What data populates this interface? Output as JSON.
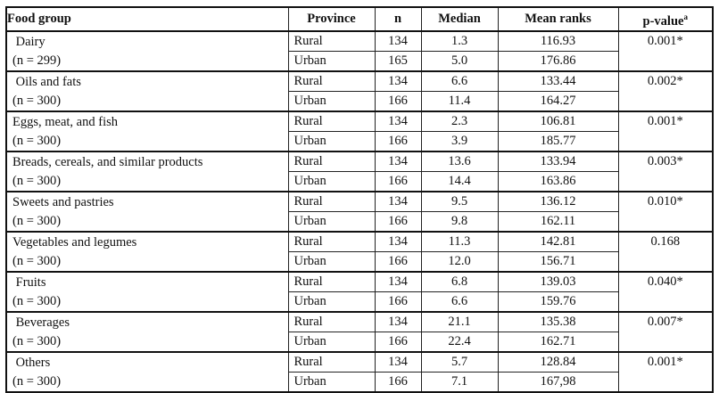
{
  "header": {
    "food_group": "Food group",
    "province": "Province",
    "n": "n",
    "median": "Median",
    "mean_ranks": "Mean ranks",
    "p_value": "p-value",
    "p_value_sup": "a"
  },
  "groups": [
    {
      "name": " Dairy",
      "count": "(n = 299)",
      "p": "0.001*",
      "rural": {
        "province": "Rural",
        "n": "134",
        "median": "1.3",
        "mean": "116.93"
      },
      "urban": {
        "province": "Urban",
        "n": "165",
        "median": "5.0",
        "mean": "176.86"
      }
    },
    {
      "name": " Oils and fats",
      "count": "(n = 300)",
      "p": "0.002*",
      "rural": {
        "province": "Rural",
        "n": "134",
        "median": "6.6",
        "mean": "133.44"
      },
      "urban": {
        "province": "Urban",
        "n": "166",
        "median": "11.4",
        "mean": "164.27"
      }
    },
    {
      "name": "Eggs, meat, and fish",
      "count": "(n = 300)",
      "p": "0.001*",
      "rural": {
        "province": "Rural",
        "n": "134",
        "median": "2.3",
        "mean": "106.81"
      },
      "urban": {
        "province": "Urban",
        "n": "166",
        "median": "3.9",
        "mean": "185.77"
      }
    },
    {
      "name": "Breads, cereals, and similar products",
      "count": "(n = 300)",
      "p": "0.003*",
      "rural": {
        "province": "Rural",
        "n": "134",
        "median": "13.6",
        "mean": "133.94"
      },
      "urban": {
        "province": "Urban",
        "n": "166",
        "median": "14.4",
        "mean": "163.86"
      }
    },
    {
      "name": "Sweets and pastries",
      "count": "(n = 300)",
      "p": "0.010*",
      "rural": {
        "province": "Rural",
        "n": "134",
        "median": "9.5",
        "mean": "136.12"
      },
      "urban": {
        "province": "Urban",
        "n": "166",
        "median": "9.8",
        "mean": "162.11"
      }
    },
    {
      "name": "Vegetables and legumes",
      "count": "(n = 300)",
      "p": "0.168",
      "rural": {
        "province": "Rural",
        "n": "134",
        "median": "11.3",
        "mean": "142.81"
      },
      "urban": {
        "province": "Urban",
        "n": "166",
        "median": "12.0",
        "mean": "156.71"
      }
    },
    {
      "name": " Fruits",
      "count": "(n = 300)",
      "p": "0.040*",
      "rural": {
        "province": "Rural",
        "n": "134",
        "median": "6.8",
        "mean": "139.03"
      },
      "urban": {
        "province": "Urban",
        "n": "166",
        "median": "6.6",
        "mean": "159.76"
      }
    },
    {
      "name": " Beverages",
      "count": "(n = 300)",
      "p": "0.007*",
      "rural": {
        "province": "Rural",
        "n": "134",
        "median": "21.1",
        "mean": "135.38"
      },
      "urban": {
        "province": "Urban",
        "n": "166",
        "median": "22.4",
        "mean": "162.71"
      }
    },
    {
      "name": " Others",
      "count": "(n = 300)",
      "p": "0.001*",
      "rural": {
        "province": "Rural",
        "n": "134",
        "median": "5.7",
        "mean": "128.84"
      },
      "urban": {
        "province": "Urban",
        "n": "166",
        "median": "7.1",
        "mean": "167,98"
      }
    }
  ]
}
